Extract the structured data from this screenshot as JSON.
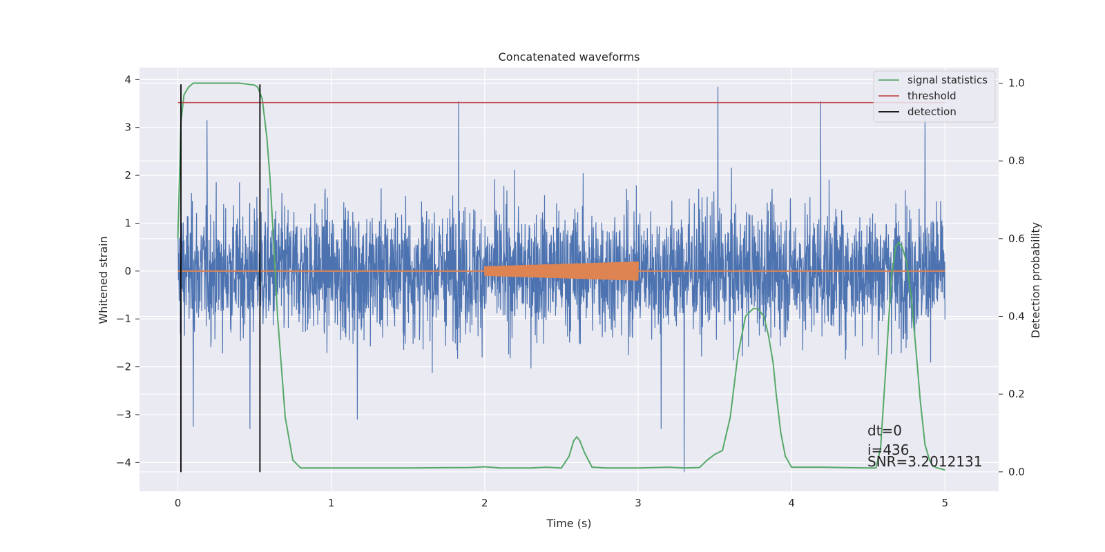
{
  "chart_data": {
    "type": "line",
    "title": "Concatenated waveforms",
    "xlabel": "Time (s)",
    "ylabel": "Whitened strain",
    "y2label": "Detection probability",
    "xlim": [
      -0.25,
      5.35
    ],
    "ylim": [
      -4.6,
      4.25
    ],
    "y2lim": [
      -0.05,
      1.04
    ],
    "x_ticks": [
      0,
      1,
      2,
      3,
      4,
      5
    ],
    "y_ticks": [
      -4,
      -3,
      -2,
      -1,
      0,
      1,
      2,
      3,
      4
    ],
    "y2_ticks": [
      0.0,
      0.2,
      0.4,
      0.6,
      0.8,
      1.0
    ],
    "x_tick_labels": [
      "0",
      "1",
      "2",
      "3",
      "4",
      "5"
    ],
    "y_tick_labels": [
      "−4",
      "−3",
      "−2",
      "−1",
      "0",
      "1",
      "2",
      "3",
      "4"
    ],
    "y2_tick_labels": [
      "0.0",
      "0.2",
      "0.4",
      "0.6",
      "0.8",
      "1.0"
    ],
    "grid": true,
    "legend_position": "top-right",
    "colors": {
      "strain": "#4c72b0",
      "waveform": "#dd8452",
      "signal_statistics": "#55a868",
      "threshold": "#c44e52",
      "detection": "#000000",
      "background": "#eaeaf2"
    },
    "series": [
      {
        "name": "signal statistics",
        "axis": "right",
        "x": [
          0.0,
          0.01,
          0.02,
          0.04,
          0.07,
          0.1,
          0.2,
          0.3,
          0.4,
          0.5,
          0.52,
          0.55,
          0.58,
          0.6,
          0.62,
          0.65,
          0.7,
          0.75,
          0.8,
          0.9,
          1.0,
          1.5,
          1.9,
          2.0,
          2.1,
          2.3,
          2.4,
          2.5,
          2.55,
          2.58,
          2.6,
          2.62,
          2.65,
          2.7,
          2.8,
          3.0,
          3.2,
          3.3,
          3.4,
          3.45,
          3.5,
          3.55,
          3.6,
          3.65,
          3.7,
          3.75,
          3.78,
          3.82,
          3.85,
          3.88,
          3.9,
          3.93,
          3.96,
          4.0,
          4.2,
          4.5,
          4.55,
          4.58,
          4.62,
          4.65,
          4.68,
          4.7,
          4.72,
          4.75,
          4.78,
          4.81,
          4.84,
          4.87,
          4.9,
          4.92,
          4.95,
          5.0
        ],
        "values": [
          0.6,
          0.75,
          0.9,
          0.97,
          0.99,
          1.0,
          1.0,
          1.0,
          1.0,
          0.995,
          0.99,
          0.96,
          0.86,
          0.76,
          0.62,
          0.4,
          0.14,
          0.03,
          0.01,
          0.01,
          0.01,
          0.01,
          0.011,
          0.013,
          0.01,
          0.01,
          0.012,
          0.01,
          0.04,
          0.08,
          0.09,
          0.08,
          0.05,
          0.012,
          0.01,
          0.01,
          0.012,
          0.01,
          0.011,
          0.03,
          0.045,
          0.055,
          0.14,
          0.3,
          0.4,
          0.42,
          0.42,
          0.4,
          0.35,
          0.28,
          0.2,
          0.1,
          0.04,
          0.012,
          0.012,
          0.01,
          0.01,
          0.06,
          0.3,
          0.5,
          0.58,
          0.59,
          0.58,
          0.54,
          0.45,
          0.32,
          0.18,
          0.07,
          0.03,
          0.015,
          0.01,
          0.005
        ]
      },
      {
        "name": "threshold",
        "axis": "right",
        "x": [
          0.0,
          5.0
        ],
        "values": [
          0.95,
          0.95
        ]
      },
      {
        "name": "detection",
        "axis": "left",
        "segments": [
          {
            "x": 0.02,
            "y": [
              -4.2,
              3.9
            ]
          },
          {
            "x": 0.535,
            "y": [
              -4.2,
              3.9
            ]
          }
        ]
      }
    ],
    "strain_noise": {
      "x_range": [
        0.0,
        5.0
      ],
      "typical_range": [
        -2.5,
        2.5
      ],
      "spikes": [
        {
          "x": 1.83,
          "y": 3.55
        },
        {
          "x": 3.52,
          "y": 3.85
        },
        {
          "x": 4.19,
          "y": 3.55
        },
        {
          "x": 4.87,
          "y": 3.35
        },
        {
          "x": 0.19,
          "y": 3.15
        },
        {
          "x": 3.3,
          "y": -4.2
        },
        {
          "x": 0.1,
          "y": -3.25
        },
        {
          "x": 0.47,
          "y": -3.3
        },
        {
          "x": 1.17,
          "y": -3.1
        },
        {
          "x": 3.15,
          "y": -3.3
        }
      ]
    },
    "injected_waveform": {
      "x_start": 2.0,
      "x_end": 3.0,
      "amplitude_start": 0.1,
      "amplitude_end": 0.2
    },
    "legend": [
      "signal statistics",
      "threshold",
      "detection"
    ],
    "annotations": [
      "dt=0",
      "i=436",
      "SNR=3.2012131"
    ]
  }
}
